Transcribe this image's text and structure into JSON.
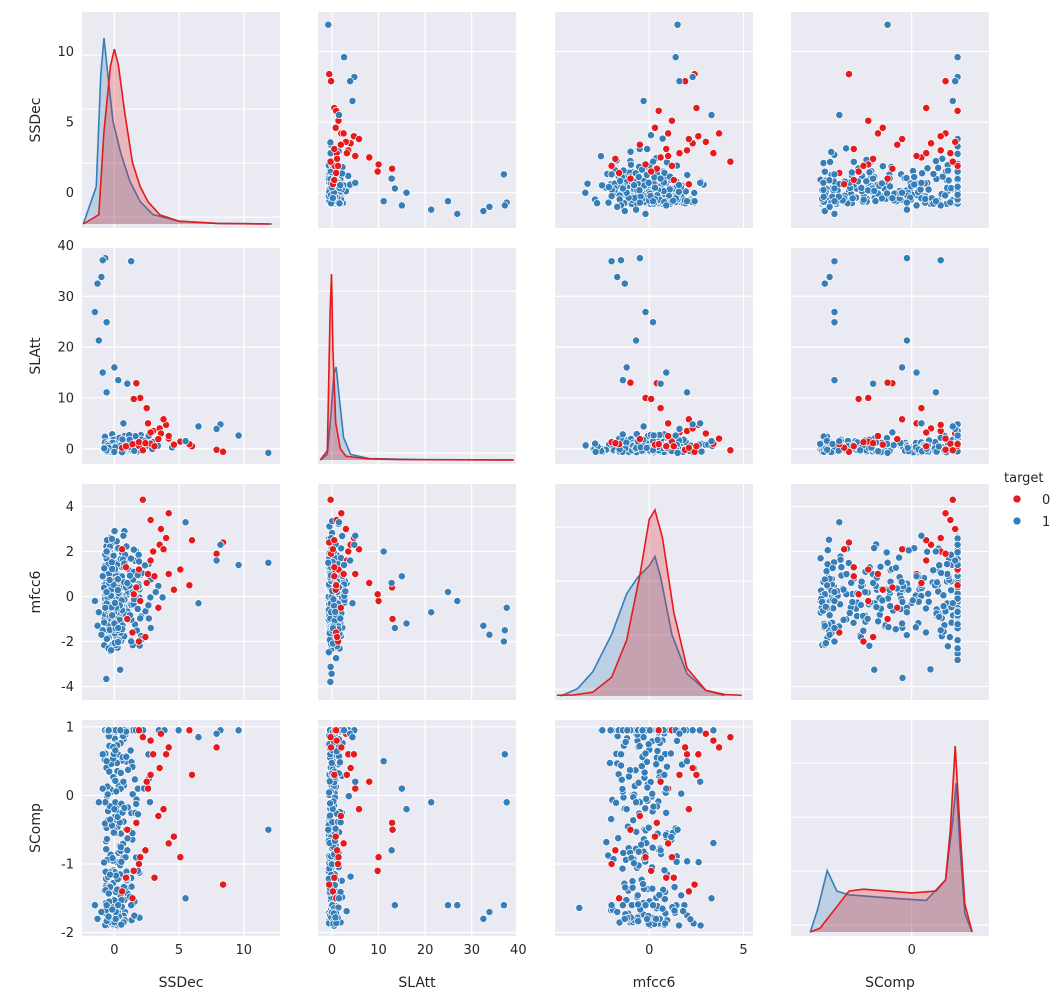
{
  "chart_data": {
    "type": "scatter",
    "subtype": "pairplot",
    "variables": [
      {
        "name": "SSDec",
        "lim": [
          -2.5,
          12.8
        ],
        "ticks": [
          0,
          5,
          10
        ]
      },
      {
        "name": "SLAtt",
        "lim": [
          -3,
          39.5
        ],
        "ticks": [
          0,
          10,
          20,
          30,
          40
        ]
      },
      {
        "name": "mfcc6",
        "lim": [
          -4.6,
          5.0
        ],
        "ticks": [
          -4,
          -2,
          0,
          2,
          4
        ]
      },
      {
        "name": "SComp",
        "lim": [
          -2.05,
          1.1
        ],
        "ticks": [
          -2,
          -1,
          0,
          1
        ]
      }
    ],
    "x_ticks": [
      {
        "values": [
          0,
          5,
          10
        ],
        "labels": [
          "0",
          "5",
          "10"
        ]
      },
      {
        "values": [
          0,
          10,
          20,
          30,
          40
        ],
        "labels": [
          "0",
          "10",
          "20",
          "30",
          "40"
        ]
      },
      {
        "values": [
          0,
          5
        ],
        "labels": [
          "0",
          "5"
        ]
      },
      {
        "values": [
          0
        ],
        "labels": [
          "0"
        ]
      }
    ],
    "x_lims": [
      [
        -2.5,
        12.8
      ],
      [
        -3,
        39.5
      ],
      [
        -5,
        5.5
      ],
      [
        -2.5,
        1.6
      ]
    ],
    "legend": {
      "title": "target",
      "placement": "right",
      "entries": [
        {
          "label": "0",
          "color": "#e41a1c"
        },
        {
          "label": "1",
          "color": "#377eb8"
        }
      ]
    },
    "diag_kde": {
      "SSDec": {
        "red": [
          [
            -2.4,
            0
          ],
          [
            -1.2,
            0.05
          ],
          [
            -0.8,
            0.5
          ],
          [
            -0.3,
            0.85
          ],
          [
            0,
            0.94
          ],
          [
            0.3,
            0.86
          ],
          [
            0.8,
            0.6
          ],
          [
            1.4,
            0.33
          ],
          [
            2,
            0.2
          ],
          [
            2.6,
            0.12
          ],
          [
            3.5,
            0.05
          ],
          [
            5,
            0.015
          ],
          [
            8,
            0.003
          ],
          [
            12,
            0
          ]
        ],
        "blue": [
          [
            -2.4,
            0
          ],
          [
            -1.4,
            0.2
          ],
          [
            -1.05,
            0.8
          ],
          [
            -0.8,
            1.0
          ],
          [
            -0.5,
            0.8
          ],
          [
            -0.1,
            0.55
          ],
          [
            0.5,
            0.38
          ],
          [
            1.2,
            0.23
          ],
          [
            2,
            0.12
          ],
          [
            3,
            0.05
          ],
          [
            5,
            0.015
          ],
          [
            8,
            0.003
          ],
          [
            12.2,
            0
          ]
        ]
      },
      "SLAtt": {
        "red": [
          [
            -2.5,
            0
          ],
          [
            -1,
            0.05
          ],
          [
            -0.4,
            0.8
          ],
          [
            -0.1,
            1.0
          ],
          [
            0.2,
            0.6
          ],
          [
            0.8,
            0.2
          ],
          [
            1.8,
            0.06
          ],
          [
            3,
            0.02
          ],
          [
            8,
            0.006
          ],
          [
            15,
            0.002
          ],
          [
            39,
            0
          ]
        ],
        "blue": [
          [
            -2.5,
            0
          ],
          [
            -1,
            0.03
          ],
          [
            -0.2,
            0.25
          ],
          [
            0.4,
            0.46
          ],
          [
            0.9,
            0.5
          ],
          [
            1.5,
            0.35
          ],
          [
            2.5,
            0.12
          ],
          [
            4,
            0.03
          ],
          [
            8,
            0.008
          ],
          [
            20,
            0.002
          ],
          [
            39,
            0
          ]
        ]
      },
      "mfcc6": {
        "red": [
          [
            -4.9,
            0.004
          ],
          [
            -4,
            0.006
          ],
          [
            -3,
            0.02
          ],
          [
            -2,
            0.1
          ],
          [
            -1.2,
            0.3
          ],
          [
            -0.5,
            0.65
          ],
          [
            0,
            0.95
          ],
          [
            0.3,
            1.0
          ],
          [
            0.7,
            0.85
          ],
          [
            1.3,
            0.45
          ],
          [
            2,
            0.15
          ],
          [
            3,
            0.03
          ],
          [
            4,
            0.008
          ],
          [
            4.9,
            0.004
          ]
        ],
        "blue": [
          [
            -4.7,
            0
          ],
          [
            -3.8,
            0.04
          ],
          [
            -3,
            0.13
          ],
          [
            -2,
            0.33
          ],
          [
            -1.2,
            0.55
          ],
          [
            -0.6,
            0.64
          ],
          [
            0,
            0.7
          ],
          [
            0.3,
            0.75
          ],
          [
            0.6,
            0.64
          ],
          [
            1.2,
            0.33
          ],
          [
            2,
            0.12
          ],
          [
            3,
            0.03
          ],
          [
            4,
            0.003
          ]
        ]
      },
      "SComp": {
        "red": [
          [
            -2.1,
            0
          ],
          [
            -1.9,
            0.02
          ],
          [
            -1.6,
            0.12
          ],
          [
            -1.3,
            0.22
          ],
          [
            -1,
            0.23
          ],
          [
            -0.5,
            0.22
          ],
          [
            0,
            0.21
          ],
          [
            0.5,
            0.22
          ],
          [
            0.7,
            0.28
          ],
          [
            0.8,
            0.55
          ],
          [
            0.9,
            1.0
          ],
          [
            1.0,
            0.55
          ],
          [
            1.1,
            0.15
          ],
          [
            1.25,
            0
          ]
        ],
        "blue": [
          [
            -2.1,
            0
          ],
          [
            -1.95,
            0.12
          ],
          [
            -1.75,
            0.33
          ],
          [
            -1.55,
            0.22
          ],
          [
            -1.3,
            0.2
          ],
          [
            -0.8,
            0.19
          ],
          [
            -0.3,
            0.18
          ],
          [
            0.3,
            0.17
          ],
          [
            0.7,
            0.28
          ],
          [
            0.85,
            0.6
          ],
          [
            0.92,
            0.8
          ],
          [
            1.0,
            0.45
          ],
          [
            1.1,
            0.1
          ],
          [
            1.25,
            0
          ]
        ]
      }
    },
    "series": [
      {
        "name": "0",
        "color": "#e41a1c",
        "points": [
          [
            3.0,
            3.5,
            2.0,
            0.6
          ],
          [
            3.5,
            4.0,
            2.3,
            0.4
          ],
          [
            7.9,
            -0.2,
            1.9,
            0.7
          ],
          [
            8.4,
            -0.6,
            2.4,
            -1.3
          ],
          [
            6.0,
            0.5,
            2.5,
            0.3
          ],
          [
            2.8,
            1.0,
            3.4,
            0.8
          ],
          [
            3.6,
            3.0,
            3.0,
            0.9
          ],
          [
            4.2,
            2.0,
            3.7,
            0.7
          ],
          [
            1.9,
            0.6,
            1.2,
            0.95
          ],
          [
            2.2,
            -0.3,
            4.3,
            0.85
          ],
          [
            1.7,
            12.9,
            0.4,
            -0.4
          ],
          [
            1.0,
            13.0,
            -1.0,
            -0.5
          ],
          [
            2.0,
            10.0,
            -0.2,
            -0.9
          ],
          [
            1.5,
            9.8,
            0.1,
            -1.1
          ],
          [
            2.5,
            8.0,
            0.6,
            0.2
          ],
          [
            5.1,
            1.4,
            1.2,
            -0.9
          ],
          [
            4.6,
            0.8,
            0.3,
            -0.6
          ],
          [
            4.2,
            2.5,
            1.0,
            -0.7
          ],
          [
            3.4,
            1.9,
            -0.5,
            -0.3
          ],
          [
            3.1,
            0.5,
            0.9,
            -1.2
          ],
          [
            2.8,
            3.2,
            1.6,
            0.3
          ],
          [
            4.0,
            4.7,
            2.6,
            0.6
          ],
          [
            2.6,
            5.0,
            1.0,
            0.1
          ],
          [
            3.8,
            5.8,
            2.1,
            -0.2
          ],
          [
            5.8,
            0.9,
            0.5,
            0.95
          ],
          [
            0.6,
            0.2,
            2.1,
            -1.4
          ],
          [
            0.9,
            0.5,
            1.3,
            -1.2
          ],
          [
            1.4,
            0.9,
            -1.6,
            -1.5
          ],
          [
            1.9,
            1.3,
            -2.0,
            -1.0
          ],
          [
            2.4,
            1.1,
            -1.8,
            -0.8
          ]
        ]
      },
      {
        "name": "1",
        "color": "#377eb8",
        "points": [
          [
            -0.7,
            37.5,
            -0.5,
            -0.1
          ],
          [
            -0.9,
            37.1,
            -1.5,
            0.6
          ],
          [
            -1.3,
            32.5,
            -1.3,
            -1.8
          ],
          [
            -1.0,
            33.8,
            -1.7,
            -1.7
          ],
          [
            1.3,
            36.9,
            -2.0,
            -1.6
          ],
          [
            -1.5,
            26.9,
            -0.2,
            -1.6
          ],
          [
            -1.2,
            21.3,
            -0.7,
            -0.1
          ],
          [
            -0.6,
            24.9,
            0.2,
            -1.6
          ],
          [
            11.9,
            -0.8,
            1.5,
            -0.5
          ],
          [
            9.6,
            2.6,
            1.4,
            0.95
          ],
          [
            8.2,
            4.8,
            2.3,
            0.95
          ],
          [
            7.9,
            3.9,
            1.6,
            0.9
          ],
          [
            6.5,
            4.4,
            -0.3,
            0.85
          ],
          [
            5.5,
            1.5,
            3.3,
            -1.5
          ],
          [
            0.0,
            16.0,
            -1.2,
            -0.2
          ],
          [
            -0.6,
            11.1,
            2.0,
            0.5
          ],
          [
            -0.9,
            15.0,
            0.9,
            0.1
          ],
          [
            1.0,
            12.8,
            0.6,
            -0.8
          ],
          [
            0.3,
            13.5,
            -1.4,
            -1.6
          ],
          [
            0.7,
            5.0,
            2.7,
            0.2
          ]
        ]
      }
    ]
  }
}
